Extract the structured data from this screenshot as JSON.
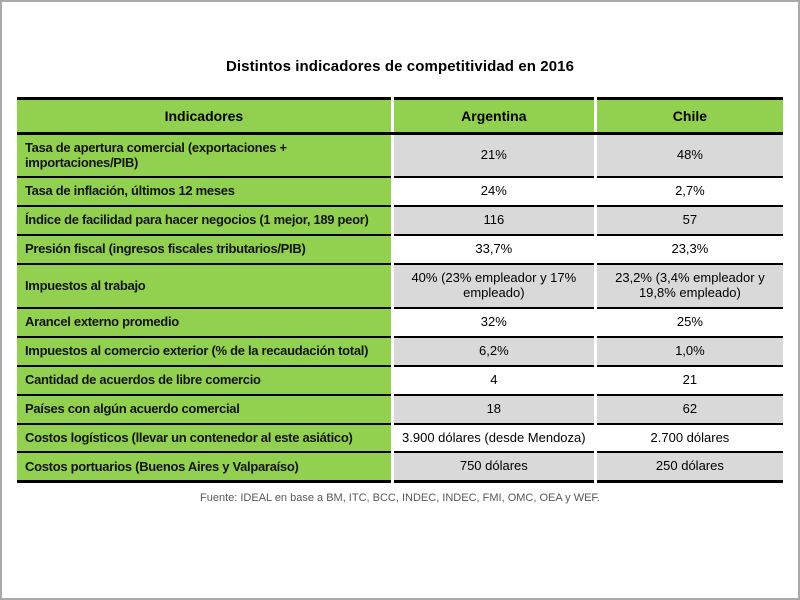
{
  "title": "Distintos indicadores de competitividad en 2016",
  "source_note": "Fuente: IDEAL en base a BM, ITC, BCC, INDEC, INDEC, FMI, OMC, OEA y WEF.",
  "colors": {
    "header_green": "#92d050",
    "row_shade_gray": "#d9d9d9",
    "border_black": "#000000",
    "cell_divider_white": "#ffffff"
  },
  "chart_data": {
    "type": "table",
    "title": "Distintos indicadores de competitividad en 2016",
    "columns": [
      "Indicadores",
      "Argentina",
      "Chile"
    ],
    "rows": [
      [
        "Tasa de apertura comercial (exportaciones + importaciones/PIB)",
        "21%",
        "48%"
      ],
      [
        "Tasa de inflación, últimos 12 meses",
        "24%",
        "2,7%"
      ],
      [
        "Índice de facilidad para hacer negocios (1 mejor, 189 peor)",
        "116",
        "57"
      ],
      [
        "Presión fiscal (ingresos fiscales tributarios/PIB)",
        "33,7%",
        "23,3%"
      ],
      [
        "Impuestos al trabajo",
        "40% (23% empleador y 17% empleado)",
        "23,2% (3,4% empleador y 19,8% empleado)"
      ],
      [
        "Arancel externo promedio",
        "32%",
        "25%"
      ],
      [
        "Impuestos al comercio exterior (% de la recaudación total)",
        "6,2%",
        "1,0%"
      ],
      [
        "Cantidad de acuerdos de libre comercio",
        "4",
        "21"
      ],
      [
        "Países con algún acuerdo comercial",
        "18",
        "62"
      ],
      [
        "Costos logísticos (llevar un contenedor al este asiático)",
        "3.900 dólares (desde Mendoza)",
        "2.700 dólares"
      ],
      [
        "Costos portuarios (Buenos Aires y Valparaíso)",
        "750 dólares",
        "250 dólares"
      ]
    ],
    "layout": "first column green label cells, value columns alternate white/gray rows, legend none, grid black horizontal rules"
  }
}
